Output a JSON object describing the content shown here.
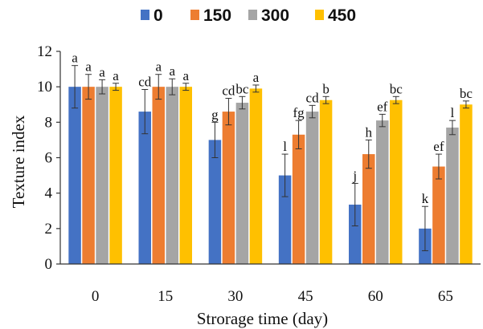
{
  "chart_data": {
    "type": "bar",
    "xlabel": "Strorage time (day)",
    "ylabel": "Texture index",
    "ylim": [
      0,
      12
    ],
    "yticks": [
      0,
      2,
      4,
      6,
      8,
      10,
      12
    ],
    "categories": [
      "0",
      "15",
      "30",
      "45",
      "60",
      "65"
    ],
    "legend_position": "top",
    "series": [
      {
        "name": "0",
        "color": "#4472C4",
        "values": [
          10.0,
          8.6,
          7.0,
          5.0,
          3.35,
          2.0
        ],
        "errors": [
          1.2,
          1.25,
          1.0,
          1.2,
          1.2,
          1.25
        ],
        "letters": [
          "a",
          "cd",
          "g",
          "l",
          "j",
          "k"
        ]
      },
      {
        "name": "150",
        "color": "#ED7D31",
        "values": [
          10.0,
          10.0,
          8.6,
          7.3,
          6.2,
          5.5
        ],
        "errors": [
          0.7,
          0.7,
          0.75,
          0.8,
          0.8,
          0.7
        ],
        "letters": [
          "a",
          "a",
          "cd",
          "fg",
          "h",
          "ef"
        ]
      },
      {
        "name": "300",
        "color": "#A5A5A5",
        "values": [
          10.0,
          10.0,
          9.1,
          8.6,
          8.1,
          7.7
        ],
        "errors": [
          0.4,
          0.45,
          0.35,
          0.35,
          0.35,
          0.4
        ],
        "letters": [
          "a",
          "a",
          "bc",
          "cd",
          "ef",
          "l"
        ]
      },
      {
        "name": "450",
        "color": "#FFC000",
        "values": [
          10.0,
          10.0,
          9.9,
          9.25,
          9.25,
          9.0
        ],
        "errors": [
          0.2,
          0.2,
          0.2,
          0.2,
          0.2,
          0.2
        ],
        "letters": [
          "a",
          "a",
          "a",
          "b",
          "bc",
          "bc"
        ]
      }
    ]
  }
}
